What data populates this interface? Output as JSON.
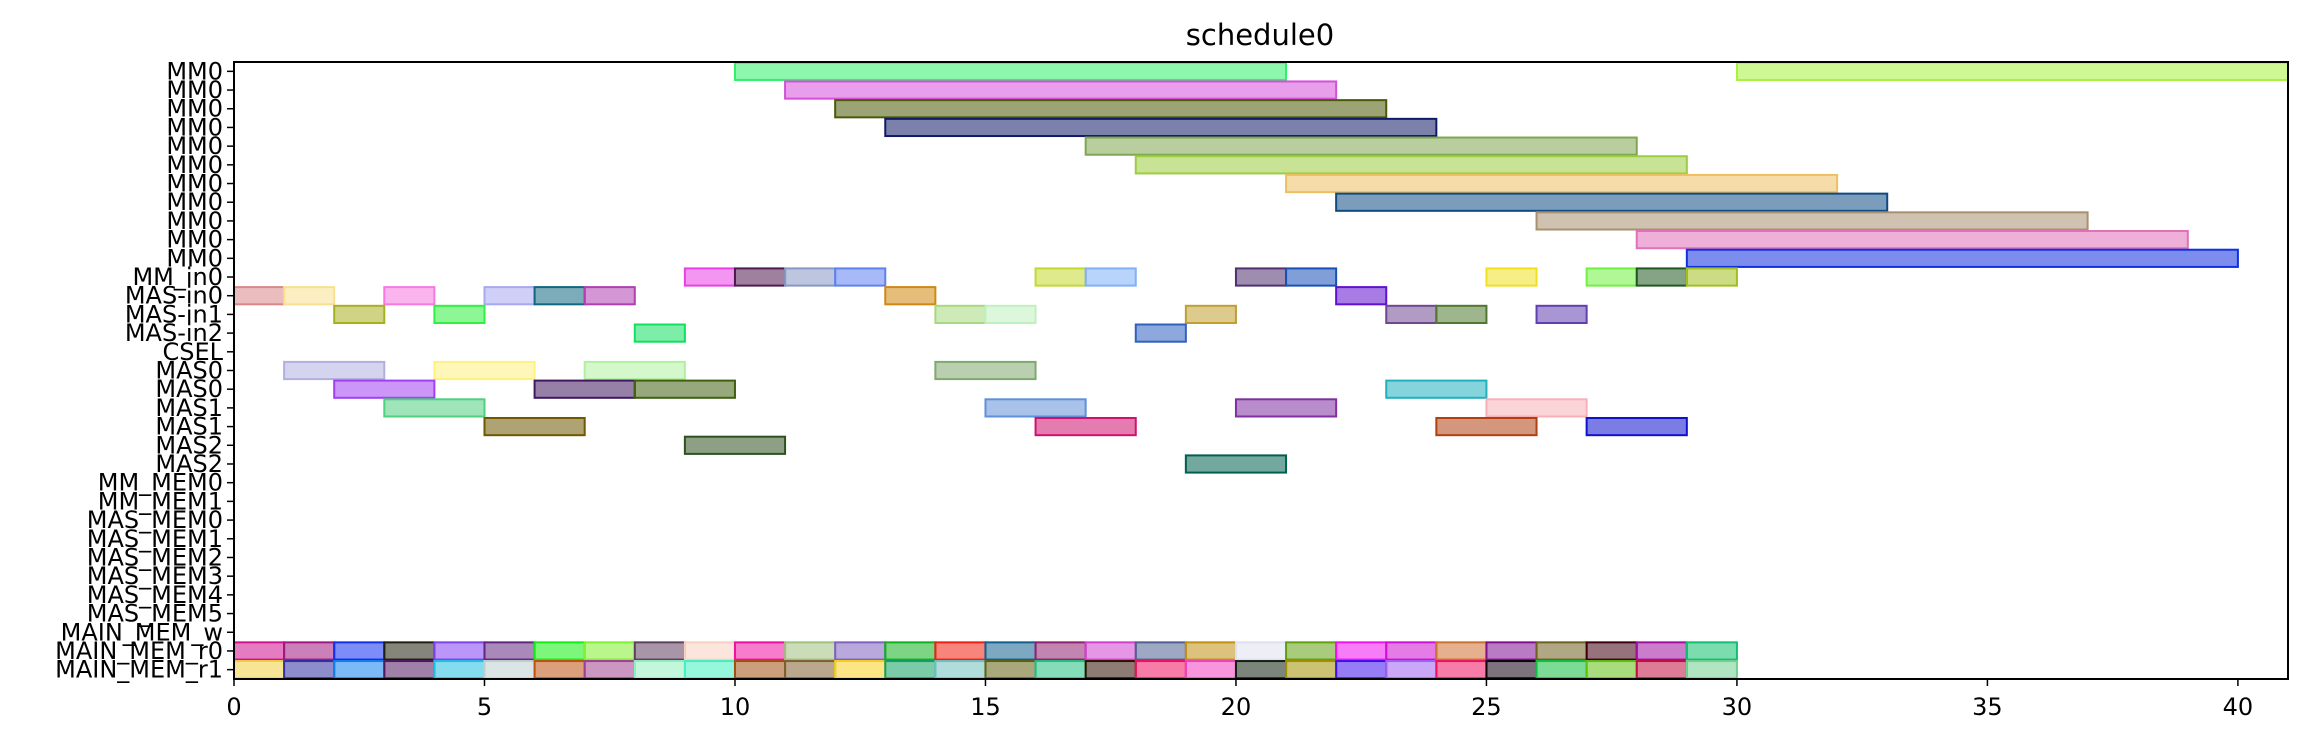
{
  "chart_data": {
    "type": "gantt",
    "title": "schedule0",
    "xlim": [
      0,
      41
    ],
    "xticks": [
      0,
      5,
      10,
      15,
      20,
      25,
      30,
      35,
      40
    ],
    "rows": [
      "MM0",
      "MM0",
      "MM0",
      "MM0",
      "MM0",
      "MM0",
      "MM0",
      "MM0",
      "MM0",
      "MM0",
      "MM0",
      "MM_in0",
      "MAS-in0",
      "MAS-in1",
      "MAS-in2",
      "CSEL",
      "MAS0",
      "MAS0",
      "MAS1",
      "MAS1",
      "MAS2",
      "MAS2",
      "MM_MEM0",
      "MM_MEM1",
      "MAS_MEM0",
      "MAS_MEM1",
      "MAS_MEM2",
      "MAS_MEM3",
      "MAS_MEM4",
      "MAS_MEM5",
      "MAIN_MEM_w",
      "MAIN_MEM_r0",
      "MAIN_MEM_r1"
    ],
    "tasks": [
      {
        "row": 0,
        "start": 10,
        "end": 21,
        "color": "#2ef06a"
      },
      {
        "row": 0,
        "start": 30,
        "end": 41,
        "color": "#a6f23c"
      },
      {
        "row": 1,
        "start": 11,
        "end": 22,
        "color": "#d64fd8"
      },
      {
        "row": 2,
        "start": 12,
        "end": 23,
        "color": "#4a5a06"
      },
      {
        "row": 3,
        "start": 13,
        "end": 24,
        "color": "#0e1a66"
      },
      {
        "row": 4,
        "start": 17,
        "end": 28,
        "color": "#7fa650"
      },
      {
        "row": 5,
        "start": 18,
        "end": 29,
        "color": "#9ccc40"
      },
      {
        "row": 6,
        "start": 21,
        "end": 32,
        "color": "#ecc060"
      },
      {
        "row": 7,
        "start": 22,
        "end": 33,
        "color": "#0e4a84"
      },
      {
        "row": 8,
        "start": 26,
        "end": 37,
        "color": "#a89070"
      },
      {
        "row": 9,
        "start": 28,
        "end": 39,
        "color": "#e070b8"
      },
      {
        "row": 10,
        "start": 29,
        "end": 40,
        "color": "#1030e0"
      },
      {
        "row": 11,
        "start": 9,
        "end": 10,
        "color": "#e840e8"
      },
      {
        "row": 11,
        "start": 10,
        "end": 11,
        "color": "#501a50"
      },
      {
        "row": 11,
        "start": 11,
        "end": 12,
        "color": "#8898c4"
      },
      {
        "row": 11,
        "start": 12,
        "end": 13,
        "color": "#6080f0"
      },
      {
        "row": 11,
        "start": 16,
        "end": 17,
        "color": "#c4d830"
      },
      {
        "row": 11,
        "start": 17,
        "end": 18,
        "color": "#80b0f8"
      },
      {
        "row": 11,
        "start": 20,
        "end": 21,
        "color": "#503070"
      },
      {
        "row": 11,
        "start": 21,
        "end": 22,
        "color": "#1850b8"
      },
      {
        "row": 11,
        "start": 25,
        "end": 26,
        "color": "#f0e020"
      },
      {
        "row": 11,
        "start": 27,
        "end": 28,
        "color": "#70f040"
      },
      {
        "row": 11,
        "start": 28,
        "end": 29,
        "color": "#205820"
      },
      {
        "row": 11,
        "start": 29,
        "end": 30,
        "color": "#a0c020"
      },
      {
        "row": 12,
        "start": 0,
        "end": 1,
        "color": "#d88888"
      },
      {
        "row": 12,
        "start": 1,
        "end": 2,
        "color": "#f8e090"
      },
      {
        "row": 12,
        "start": 3,
        "end": 4,
        "color": "#f878e0"
      },
      {
        "row": 12,
        "start": 5,
        "end": 6,
        "color": "#a8a8f0"
      },
      {
        "row": 12,
        "start": 6,
        "end": 7,
        "color": "#106880"
      },
      {
        "row": 12,
        "start": 7,
        "end": 8,
        "color": "#b040b0"
      },
      {
        "row": 12,
        "start": 13,
        "end": 14,
        "color": "#d08810"
      },
      {
        "row": 12,
        "start": 22,
        "end": 23,
        "color": "#6010d0"
      },
      {
        "row": 13,
        "start": 2,
        "end": 3,
        "color": "#a8b020"
      },
      {
        "row": 13,
        "start": 4,
        "end": 5,
        "color": "#30f040"
      },
      {
        "row": 13,
        "start": 14,
        "end": 15,
        "color": "#a8d880"
      },
      {
        "row": 13,
        "start": 15,
        "end": 16,
        "color": "#c0f0c0"
      },
      {
        "row": 13,
        "start": 19,
        "end": 20,
        "color": "#c0a030"
      },
      {
        "row": 13,
        "start": 23,
        "end": 24,
        "color": "#704890"
      },
      {
        "row": 13,
        "start": 24,
        "end": 25,
        "color": "#507830"
      },
      {
        "row": 13,
        "start": 26,
        "end": 27,
        "color": "#6040b0"
      },
      {
        "row": 14,
        "start": 8,
        "end": 9,
        "color": "#10e060"
      },
      {
        "row": 14,
        "start": 18,
        "end": 19,
        "color": "#3060c0"
      },
      {
        "row": 16,
        "start": 1,
        "end": 3,
        "color": "#b0b0e0"
      },
      {
        "row": 16,
        "start": 4,
        "end": 6,
        "color": "#fff080"
      },
      {
        "row": 16,
        "start": 7,
        "end": 9,
        "color": "#b0f0a0"
      },
      {
        "row": 16,
        "start": 14,
        "end": 16,
        "color": "#80a870"
      },
      {
        "row": 17,
        "start": 2,
        "end": 4,
        "color": "#a040f0"
      },
      {
        "row": 17,
        "start": 6,
        "end": 8,
        "color": "#401860"
      },
      {
        "row": 17,
        "start": 8,
        "end": 10,
        "color": "#406010"
      },
      {
        "row": 17,
        "start": 23,
        "end": 25,
        "color": "#20b0c0"
      },
      {
        "row": 18,
        "start": 3,
        "end": 5,
        "color": "#50d080"
      },
      {
        "row": 18,
        "start": 15,
        "end": 17,
        "color": "#6090d8"
      },
      {
        "row": 18,
        "start": 20,
        "end": 22,
        "color": "#8030a0"
      },
      {
        "row": 18,
        "start": 25,
        "end": 27,
        "color": "#f8b0b8"
      },
      {
        "row": 19,
        "start": 5,
        "end": 7,
        "color": "#705800"
      },
      {
        "row": 19,
        "start": 16,
        "end": 18,
        "color": "#d01070"
      },
      {
        "row": 19,
        "start": 24,
        "end": 26,
        "color": "#b04010"
      },
      {
        "row": 19,
        "start": 27,
        "end": 29,
        "color": "#1010d0"
      },
      {
        "row": 20,
        "start": 9,
        "end": 11,
        "color": "#305020"
      },
      {
        "row": 21,
        "start": 19,
        "end": 21,
        "color": "#006050"
      },
      {
        "row": 31,
        "start": 0,
        "end": 1,
        "color": "#d01090"
      },
      {
        "row": 31,
        "start": 1,
        "end": 2,
        "color": "#a01880"
      },
      {
        "row": 31,
        "start": 2,
        "end": 3,
        "color": "#1030f0"
      },
      {
        "row": 31,
        "start": 3,
        "end": 4,
        "color": "#202010"
      },
      {
        "row": 31,
        "start": 4,
        "end": 5,
        "color": "#8040f0"
      },
      {
        "row": 31,
        "start": 5,
        "end": 6,
        "color": "#602880"
      },
      {
        "row": 31,
        "start": 6,
        "end": 7,
        "color": "#10f010"
      },
      {
        "row": 31,
        "start": 7,
        "end": 8,
        "color": "#80f030"
      },
      {
        "row": 31,
        "start": 8,
        "end": 9,
        "color": "#604060"
      },
      {
        "row": 31,
        "start": 9,
        "end": 10,
        "color": "#f8d0c0"
      },
      {
        "row": 31,
        "start": 10,
        "end": 11,
        "color": "#f010a0"
      },
      {
        "row": 31,
        "start": 11,
        "end": 12,
        "color": "#a0c080"
      },
      {
        "row": 31,
        "start": 12,
        "end": 13,
        "color": "#8060c0"
      },
      {
        "row": 31,
        "start": 13,
        "end": 14,
        "color": "#10b020"
      },
      {
        "row": 31,
        "start": 14,
        "end": 15,
        "color": "#f02010"
      },
      {
        "row": 31,
        "start": 15,
        "end": 16,
        "color": "#106090"
      },
      {
        "row": 31,
        "start": 16,
        "end": 17,
        "color": "#902070"
      },
      {
        "row": 31,
        "start": 17,
        "end": 18,
        "color": "#d040d0"
      },
      {
        "row": 31,
        "start": 18,
        "end": 19,
        "color": "#506090"
      },
      {
        "row": 31,
        "start": 19,
        "end": 20,
        "color": "#c09010"
      },
      {
        "row": 31,
        "start": 20,
        "end": 21,
        "color": "#e0e0f0"
      },
      {
        "row": 31,
        "start": 21,
        "end": 22,
        "color": "#60a010"
      },
      {
        "row": 31,
        "start": 22,
        "end": 23,
        "color": "#f010f0"
      },
      {
        "row": 31,
        "start": 23,
        "end": 24,
        "color": "#d010d0"
      },
      {
        "row": 31,
        "start": 24,
        "end": 25,
        "color": "#d07030"
      },
      {
        "row": 31,
        "start": 25,
        "end": 26,
        "color": "#801090"
      },
      {
        "row": 31,
        "start": 26,
        "end": 27,
        "color": "#706020"
      },
      {
        "row": 31,
        "start": 27,
        "end": 28,
        "color": "#400010"
      },
      {
        "row": 31,
        "start": 28,
        "end": 29,
        "color": "#a010a0"
      },
      {
        "row": 31,
        "start": 29,
        "end": 30,
        "color": "#10c070"
      },
      {
        "row": 32,
        "start": 0,
        "end": 1,
        "color": "#f0d040"
      },
      {
        "row": 32,
        "start": 1,
        "end": 2,
        "color": "#3030a0"
      },
      {
        "row": 32,
        "start": 2,
        "end": 3,
        "color": "#1080f0"
      },
      {
        "row": 32,
        "start": 3,
        "end": 4,
        "color": "#501860"
      },
      {
        "row": 32,
        "start": 4,
        "end": 5,
        "color": "#20c0e0"
      },
      {
        "row": 32,
        "start": 5,
        "end": 6,
        "color": "#c0d0d0"
      },
      {
        "row": 32,
        "start": 6,
        "end": 7,
        "color": "#c05010"
      },
      {
        "row": 32,
        "start": 7,
        "end": 8,
        "color": "#a04090"
      },
      {
        "row": 32,
        "start": 8,
        "end": 9,
        "color": "#90f0c0"
      },
      {
        "row": 32,
        "start": 9,
        "end": 10,
        "color": "#40f0c0"
      },
      {
        "row": 32,
        "start": 10,
        "end": 11,
        "color": "#a05010"
      },
      {
        "row": 32,
        "start": 11,
        "end": 12,
        "color": "#806030"
      },
      {
        "row": 32,
        "start": 12,
        "end": 13,
        "color": "#f8d020"
      },
      {
        "row": 32,
        "start": 13,
        "end": 14,
        "color": "#10a060"
      },
      {
        "row": 32,
        "start": 14,
        "end": 15,
        "color": "#70c0c0"
      },
      {
        "row": 32,
        "start": 15,
        "end": 16,
        "color": "#606010"
      },
      {
        "row": 32,
        "start": 16,
        "end": 17,
        "color": "#20c080"
      },
      {
        "row": 32,
        "start": 17,
        "end": 18,
        "color": "#301000"
      },
      {
        "row": 32,
        "start": 18,
        "end": 19,
        "color": "#f01060"
      },
      {
        "row": 32,
        "start": 19,
        "end": 20,
        "color": "#f040c0"
      },
      {
        "row": 32,
        "start": 20,
        "end": 21,
        "color": "#102010"
      },
      {
        "row": 32,
        "start": 21,
        "end": 22,
        "color": "#a09000"
      },
      {
        "row": 32,
        "start": 22,
        "end": 23,
        "color": "#4010f0"
      },
      {
        "row": 32,
        "start": 23,
        "end": 24,
        "color": "#a060f0"
      },
      {
        "row": 32,
        "start": 24,
        "end": 25,
        "color": "#f01060"
      },
      {
        "row": 32,
        "start": 25,
        "end": 26,
        "color": "#100010"
      },
      {
        "row": 32,
        "start": 26,
        "end": 27,
        "color": "#10c040"
      },
      {
        "row": 32,
        "start": 27,
        "end": 28,
        "color": "#60c010"
      },
      {
        "row": 32,
        "start": 28,
        "end": 29,
        "color": "#c01040"
      },
      {
        "row": 32,
        "start": 29,
        "end": 30,
        "color": "#70d090"
      }
    ]
  }
}
